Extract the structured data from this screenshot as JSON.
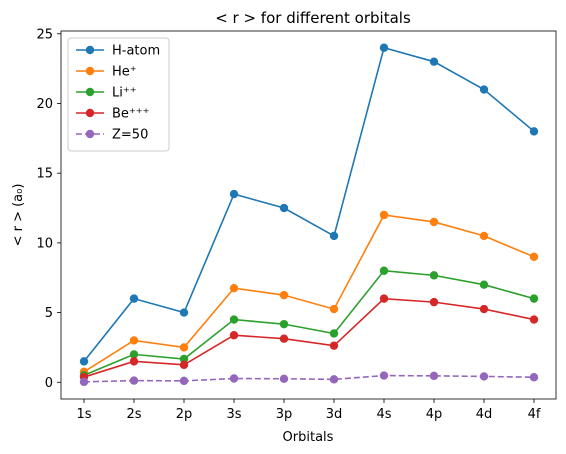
{
  "chart_data": {
    "type": "line",
    "title": "< r >  for different orbitals",
    "xlabel": "Orbitals",
    "ylabel": "< r > (a₀)",
    "categories": [
      "1s",
      "2s",
      "2p",
      "3s",
      "3p",
      "3d",
      "4s",
      "4p",
      "4d",
      "4f"
    ],
    "ylim": [
      -1.2,
      25.2
    ],
    "yticks": [
      0,
      5,
      10,
      15,
      20,
      25
    ],
    "grid": false,
    "legend_position": "top-left",
    "series": [
      {
        "name": "H-atom",
        "color": "#1f77b4",
        "dashed": false,
        "values": [
          1.5,
          6.0,
          5.0,
          13.5,
          12.5,
          10.5,
          24.0,
          23.0,
          21.0,
          18.0
        ]
      },
      {
        "name": "He⁺",
        "color": "#ff7f0e",
        "dashed": false,
        "values": [
          0.75,
          3.0,
          2.5,
          6.75,
          6.25,
          5.25,
          12.0,
          11.5,
          10.5,
          9.0
        ]
      },
      {
        "name": "Li⁺⁺",
        "color": "#2ca02c",
        "dashed": false,
        "values": [
          0.5,
          2.0,
          1.67,
          4.5,
          4.17,
          3.5,
          8.0,
          7.67,
          7.0,
          6.0
        ]
      },
      {
        "name": "Be⁺⁺⁺",
        "color": "#d62728",
        "dashed": false,
        "values": [
          0.375,
          1.5,
          1.25,
          3.375,
          3.125,
          2.625,
          6.0,
          5.75,
          5.25,
          4.5
        ]
      },
      {
        "name": "Z=50",
        "color": "#9467bd",
        "dashed": true,
        "values": [
          0.03,
          0.12,
          0.1,
          0.27,
          0.25,
          0.21,
          0.48,
          0.46,
          0.42,
          0.36
        ]
      }
    ]
  }
}
